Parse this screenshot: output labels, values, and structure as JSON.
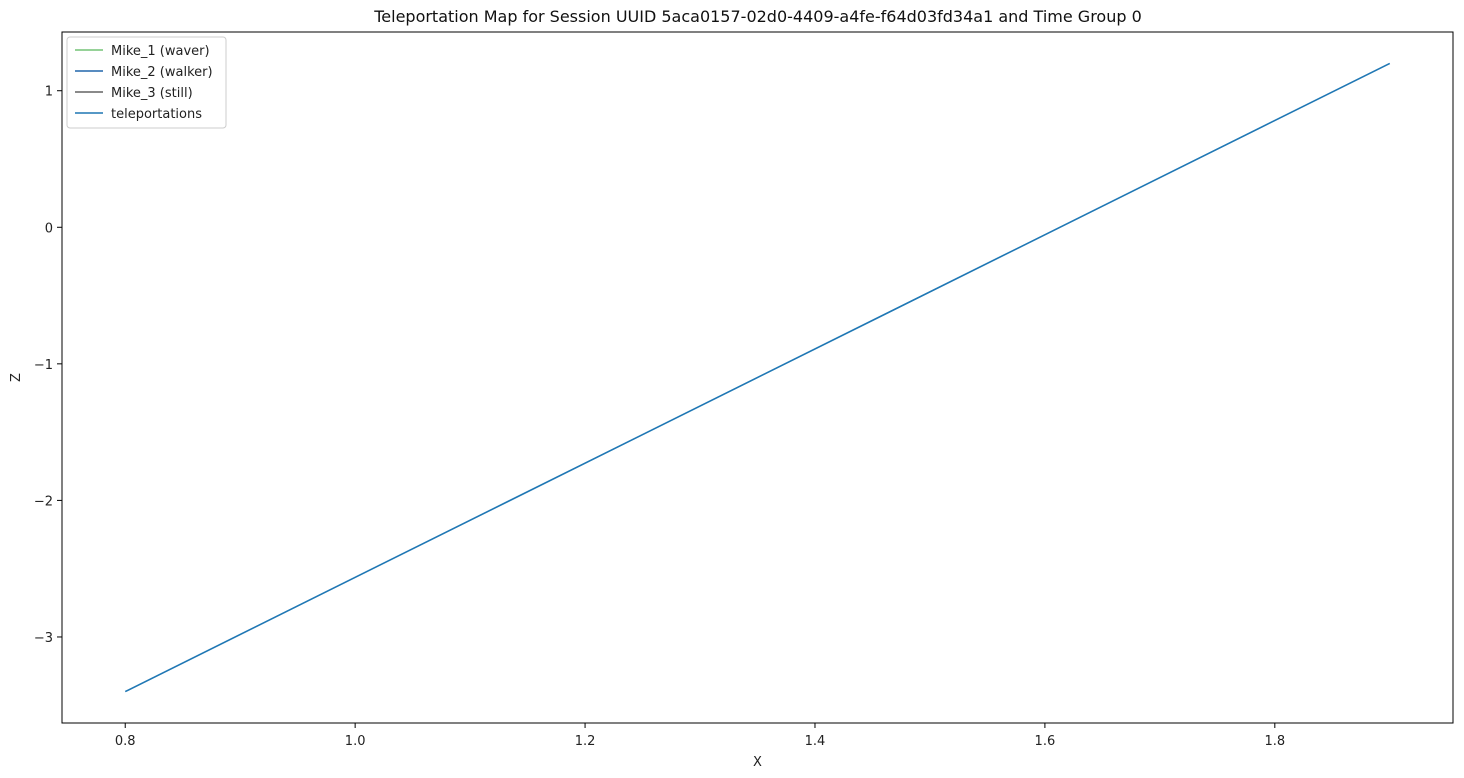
{
  "chart_data": {
    "type": "line",
    "title": "Teleportation Map for Session UUID 5aca0157-02d0-4409-a4fe-f64d03fd34a1 and Time Group 0",
    "xlabel": "X",
    "ylabel": "Z",
    "xlim": [
      0.745,
      1.955
    ],
    "ylim": [
      -3.63,
      1.43
    ],
    "xticks": [
      0.8,
      1.0,
      1.2,
      1.4,
      1.6,
      1.8
    ],
    "xtick_labels": [
      "0.8",
      "1.0",
      "1.2",
      "1.4",
      "1.6",
      "1.8"
    ],
    "yticks": [
      1,
      0,
      -1,
      -2,
      -3
    ],
    "ytick_labels": [
      "1",
      "0",
      "−1",
      "−2",
      "−3"
    ],
    "grid": false,
    "legend_position": "top-left",
    "series": [
      {
        "name": "Mike_1 (waver)",
        "color": "#74c476",
        "x": [],
        "y": []
      },
      {
        "name": "Mike_2 (walker)",
        "color": "#2166ac",
        "x": [],
        "y": []
      },
      {
        "name": "Mike_3 (still)",
        "color": "#636363",
        "x": [],
        "y": []
      },
      {
        "name": "teleportations",
        "color": "#1f77b4",
        "x": [
          0.8,
          1.9
        ],
        "y": [
          -3.4,
          1.2
        ]
      }
    ]
  }
}
